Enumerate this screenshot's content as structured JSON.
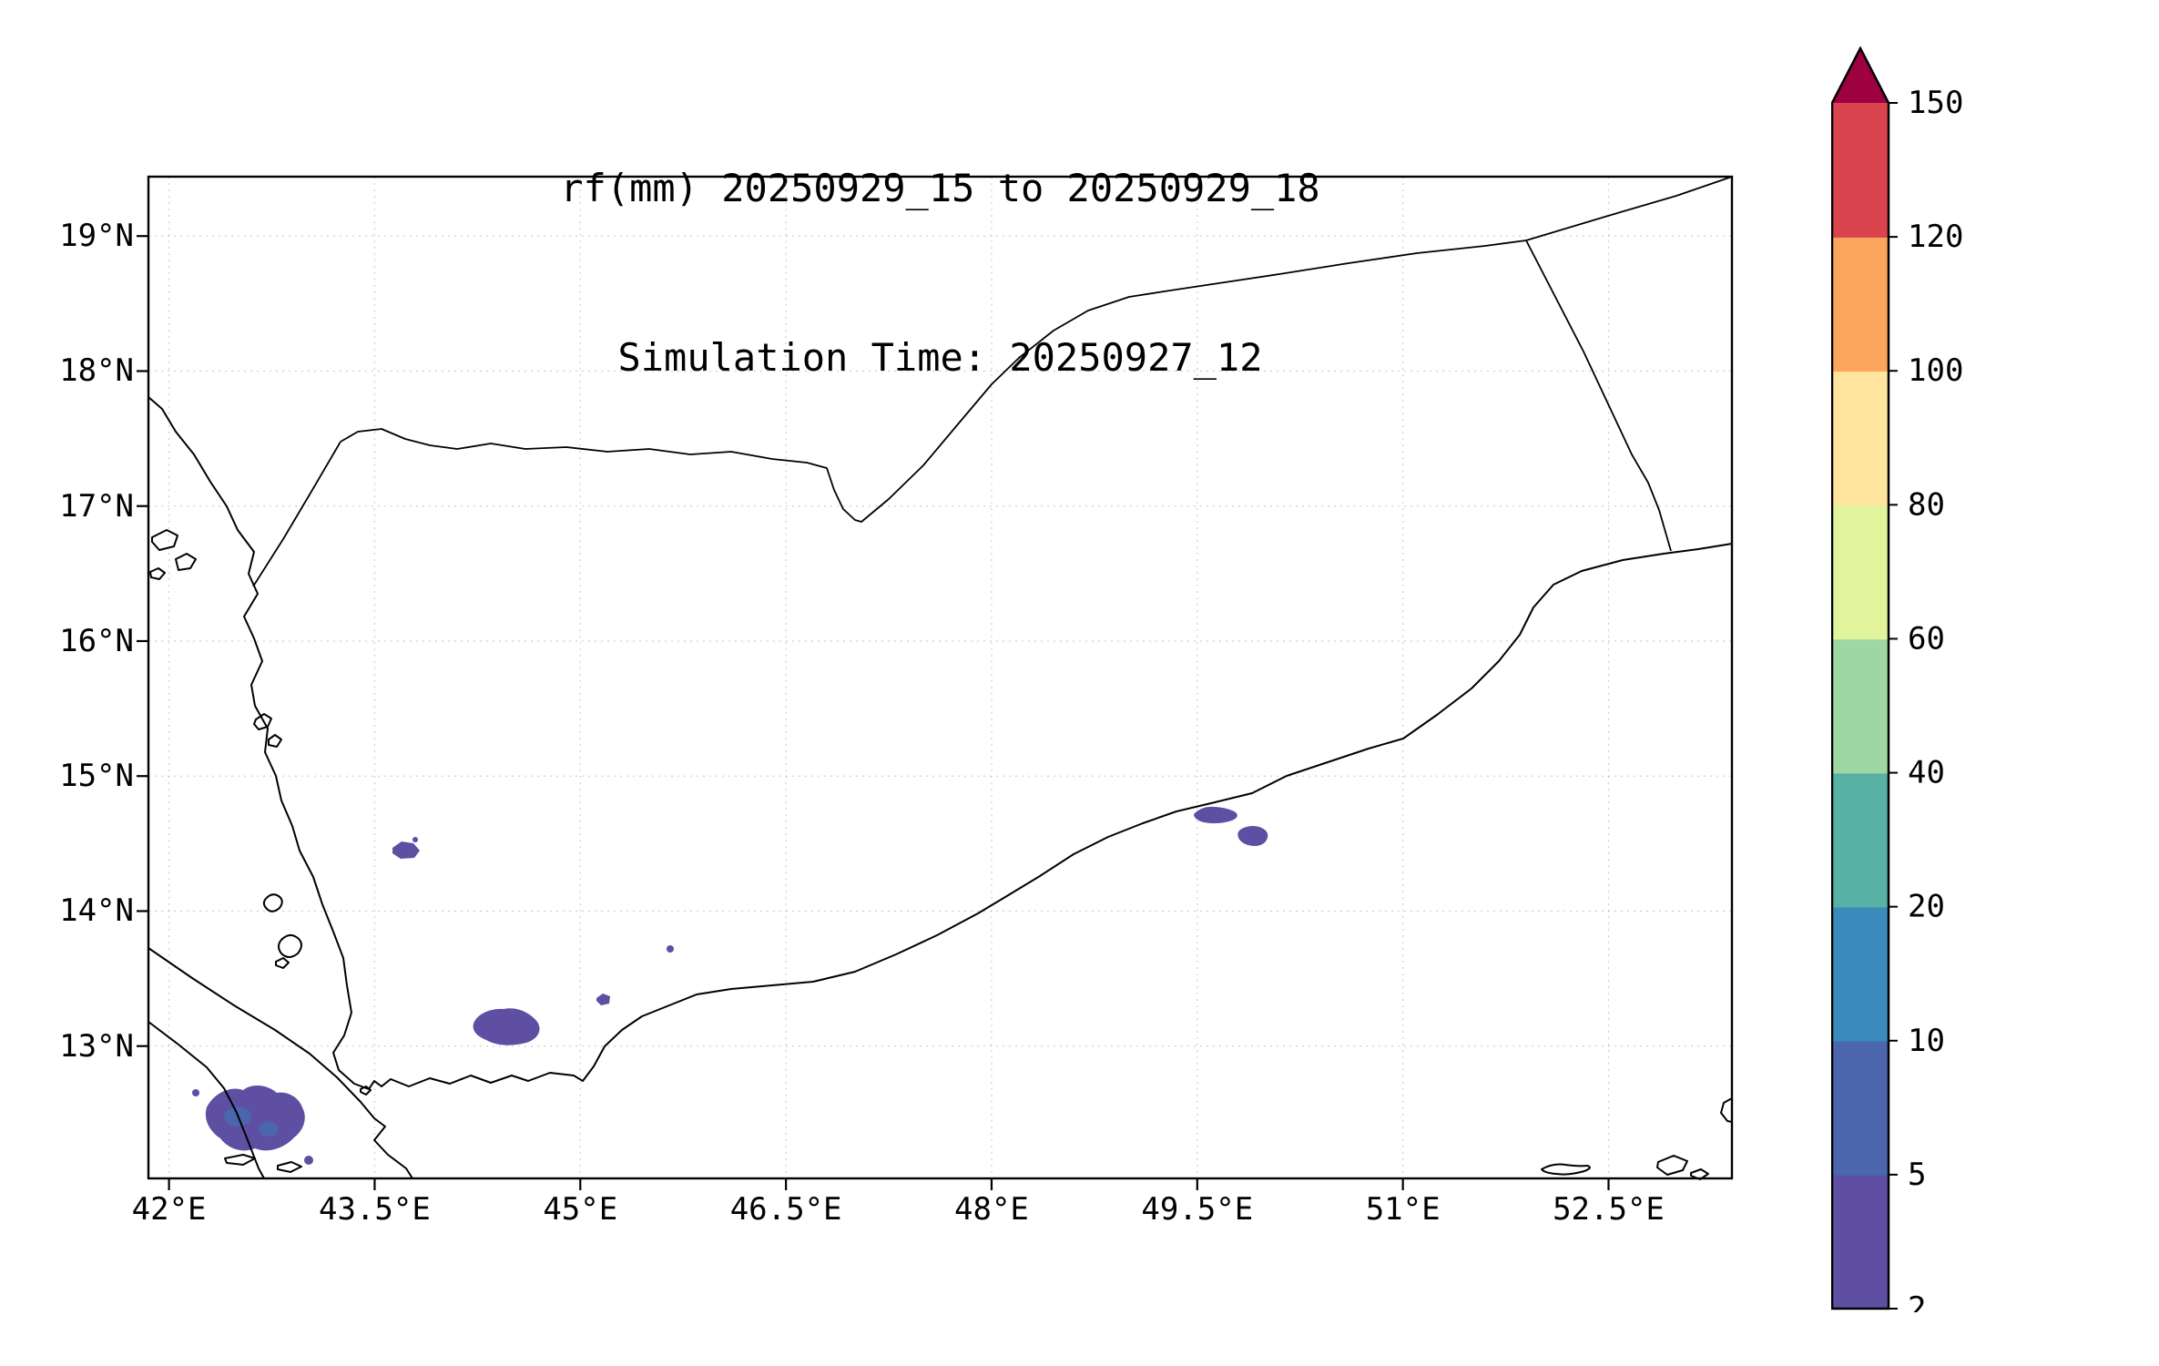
{
  "title": {
    "line1": "rf(mm) 20250929_15 to 20250929_18",
    "line2": "Simulation Time: 20250927_12"
  },
  "axes": {
    "lon_range": [
      41.85,
      53.4
    ],
    "lat_range": [
      12.02,
      19.44
    ],
    "x_ticks": [
      {
        "value": 42.0,
        "label": "42°E"
      },
      {
        "value": 43.5,
        "label": "43.5°E"
      },
      {
        "value": 45.0,
        "label": "45°E"
      },
      {
        "value": 46.5,
        "label": "46.5°E"
      },
      {
        "value": 48.0,
        "label": "48°E"
      },
      {
        "value": 49.5,
        "label": "49.5°E"
      },
      {
        "value": 51.0,
        "label": "51°E"
      },
      {
        "value": 52.5,
        "label": "52.5°E"
      }
    ],
    "y_ticks": [
      {
        "value": 19.0,
        "label": "19°N"
      },
      {
        "value": 18.0,
        "label": "18°N"
      },
      {
        "value": 17.0,
        "label": "17°N"
      },
      {
        "value": 16.0,
        "label": "16°N"
      },
      {
        "value": 15.0,
        "label": "15°N"
      },
      {
        "value": 14.0,
        "label": "14°N"
      },
      {
        "value": 13.0,
        "label": "13°N"
      }
    ]
  },
  "colorbar": {
    "levels": [
      2,
      5,
      10,
      20,
      40,
      60,
      80,
      100,
      120,
      150
    ],
    "colors": [
      "#5e4fa2",
      "#4b66ad",
      "#3a8bbb",
      "#57b1a4",
      "#9ed7a4",
      "#e2f49b",
      "#fee49c",
      "#fca55d",
      "#d9444e"
    ],
    "over_color": "#9e0142",
    "outline_color": "#000000"
  },
  "chart_data": {
    "type": "heatmap",
    "subtype": "filled-contour precipitation forecast map",
    "variable": "rf (rainfall accumulation, mm)",
    "title": "rf(mm) 20250929_15 to 20250929_18",
    "subtitle": "Simulation Time: 20250927_12",
    "region": "Yemen / southern Arabian Peninsula, Gulf of Aden, Red Sea",
    "x_axis": {
      "label": "longitude",
      "tick_labels": [
        "42°E",
        "43.5°E",
        "45°E",
        "46.5°E",
        "48°E",
        "49.5°E",
        "51°E",
        "52.5°E"
      ]
    },
    "y_axis": {
      "label": "latitude",
      "tick_labels": [
        "19°N",
        "18°N",
        "17°N",
        "16°N",
        "15°N",
        "14°N",
        "13°N"
      ]
    },
    "extent": {
      "lon": [
        41.85,
        53.4
      ],
      "lat": [
        12.02,
        19.44
      ]
    },
    "contour_levels_mm": [
      2,
      5,
      10,
      20,
      40,
      60,
      80,
      100,
      120,
      150
    ],
    "colormap": "Spectral reversed (purple low -> red high), dark-red over-extend triangle",
    "grid": true,
    "legend_position": "right colorbar",
    "rain_areas": [
      {
        "lon": 42.6,
        "lat": 12.45,
        "value_range_mm": "2-10",
        "note": "largest patch, ~0.5 deg wide, SW corner near Bab-el-Mandeb/Djibouti"
      },
      {
        "lon": 44.45,
        "lat": 13.2,
        "value_range_mm": "2-5",
        "note": "elongated patch ~0.4 deg"
      },
      {
        "lon": 45.15,
        "lat": 13.35,
        "value_range_mm": "2-5",
        "note": "small spot"
      },
      {
        "lon": 45.65,
        "lat": 13.75,
        "value_range_mm": "2-5",
        "note": "tiny spot"
      },
      {
        "lon": 43.65,
        "lat": 14.45,
        "value_range_mm": "2-5",
        "note": "small patch"
      },
      {
        "lon": 49.55,
        "lat": 14.72,
        "value_range_mm": "2-5",
        "note": "small coastal patch"
      },
      {
        "lon": 49.9,
        "lat": 14.58,
        "value_range_mm": "2-5",
        "note": "small coastal patch"
      }
    ],
    "max_plotted_band_mm": "5-10",
    "areas_with_no_rain": "most of interior Yemen and Saudi Arabia/Oman portions of map are blank (< 2 mm)"
  }
}
